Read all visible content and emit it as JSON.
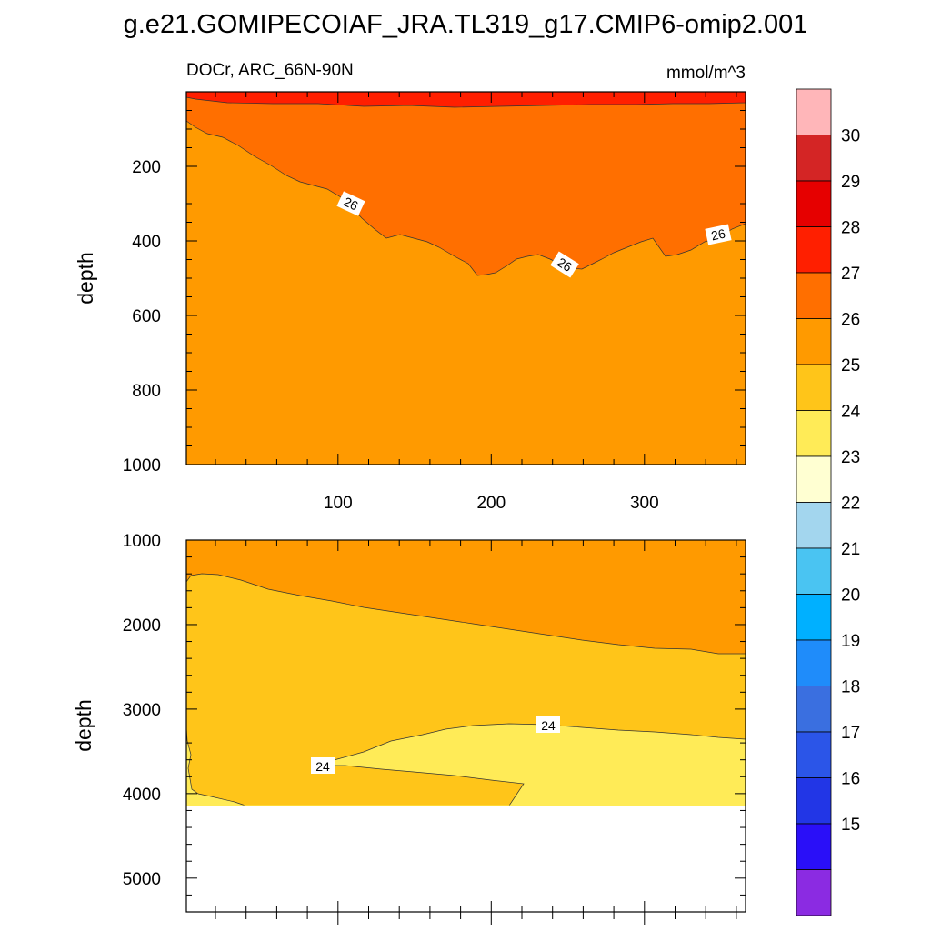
{
  "title": "g.e21.GOMIPECOIAF_JRA.TL319_g17.CMIP6-omip2.001",
  "chart_data": {
    "type": "contour",
    "variable_label": "DOCr, ARC_66N-90N",
    "units": "mmol/m^3",
    "colorbar": {
      "levels": [
        "15",
        "16",
        "17",
        "18",
        "19",
        "20",
        "21",
        "22",
        "23",
        "24",
        "25",
        "26",
        "27",
        "28",
        "29",
        "30"
      ],
      "colors": [
        "#8B2BE2",
        "#2A0FF8",
        "#2236E6",
        "#2B55E8",
        "#3A6FE0",
        "#1F8CFA",
        "#00B0FF",
        "#4AC4F2",
        "#A3D6EE",
        "#FFFFD2",
        "#FFEB57",
        "#FFC519",
        "#FF9A00",
        "#FF6F00",
        "#FF1F00",
        "#E60000",
        "#D42525",
        "#FFB6B9"
      ]
    },
    "panels": [
      {
        "name": "upper",
        "ylabel": "depth",
        "xlim": [
          1,
          366
        ],
        "ylim": [
          0,
          1000
        ],
        "y_inverted": true,
        "x_ticks": [
          "100",
          "200",
          "300"
        ],
        "y_ticks": [
          "200",
          "400",
          "600",
          "800",
          "1000"
        ],
        "y_tick_values": [
          200,
          400,
          600,
          800,
          1000
        ],
        "x_tick_values": [
          100,
          200,
          300
        ],
        "fill_bands": [
          {
            "range": "25-26",
            "color": "#FF9A00"
          },
          {
            "range": "26-27",
            "color": "#FF6F00"
          },
          {
            "range": "27-28",
            "color": "#FF1F00"
          }
        ],
        "contour_labels": [
          "26",
          "26",
          "26"
        ]
      },
      {
        "name": "lower",
        "ylabel": "depth",
        "xlim": [
          1,
          366
        ],
        "ylim": [
          1000,
          5400
        ],
        "y_inverted": true,
        "y_ticks": [
          "1000",
          "2000",
          "3000",
          "4000",
          "5000"
        ],
        "y_tick_values": [
          1000,
          2000,
          3000,
          4000,
          5000
        ],
        "seafloor_depth": 4120,
        "fill_bands": [
          {
            "range": "23-24",
            "color": "#FFEB57"
          },
          {
            "range": "24-25",
            "color": "#FFC519"
          },
          {
            "range": "25-26",
            "color": "#FF9A00"
          }
        ],
        "contour_labels": [
          "24",
          "24"
        ]
      }
    ]
  }
}
